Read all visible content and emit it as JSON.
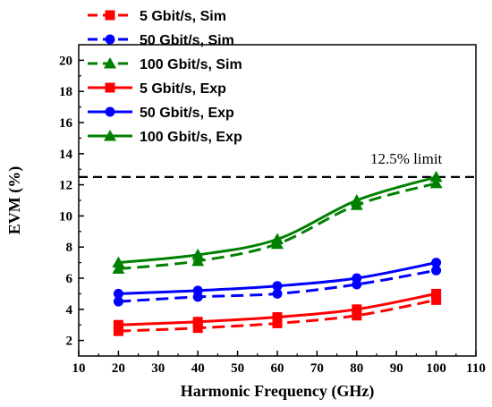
{
  "chart_data": {
    "type": "line",
    "title": "",
    "xlabel": "Harmonic Frequency (GHz)",
    "ylabel": "EVM (%)",
    "xlim": [
      10,
      110
    ],
    "ylim": [
      1,
      21
    ],
    "xticks": [
      10,
      20,
      30,
      40,
      50,
      60,
      70,
      80,
      90,
      100,
      110
    ],
    "yticks": [
      2,
      4,
      6,
      8,
      10,
      12,
      14,
      16,
      18,
      20
    ],
    "grid": false,
    "legend_position": "top-left",
    "x": [
      20,
      40,
      60,
      80,
      100
    ],
    "series": [
      {
        "name": "5 Gbit/s, Sim",
        "style": "dashed",
        "marker": "square",
        "color": "#ff0000",
        "values": [
          2.6,
          2.8,
          3.1,
          3.6,
          4.6
        ]
      },
      {
        "name": "50 Gbit/s, Sim",
        "style": "dashed",
        "marker": "circle",
        "color": "#0000ff",
        "values": [
          4.5,
          4.8,
          5.0,
          5.6,
          6.5
        ]
      },
      {
        "name": "100 Gbit/s, Sim",
        "style": "dashed",
        "marker": "triangle",
        "color": "#008000",
        "values": [
          6.6,
          7.1,
          8.2,
          10.7,
          12.1
        ]
      },
      {
        "name": "5 Gbit/s, Exp",
        "style": "solid",
        "marker": "square",
        "color": "#ff0000",
        "values": [
          3.0,
          3.2,
          3.5,
          4.0,
          5.0
        ]
      },
      {
        "name": "50 Gbit/s, Exp",
        "style": "solid",
        "marker": "circle",
        "color": "#0000ff",
        "values": [
          5.0,
          5.2,
          5.5,
          6.0,
          7.0
        ]
      },
      {
        "name": "100 Gbit/s, Exp",
        "style": "solid",
        "marker": "triangle",
        "color": "#008000",
        "values": [
          7.0,
          7.5,
          8.5,
          11.0,
          12.5
        ]
      }
    ],
    "reference_line": {
      "y": 12.5,
      "label": "12.5% limit",
      "style": "dashed",
      "color": "#000000"
    }
  }
}
